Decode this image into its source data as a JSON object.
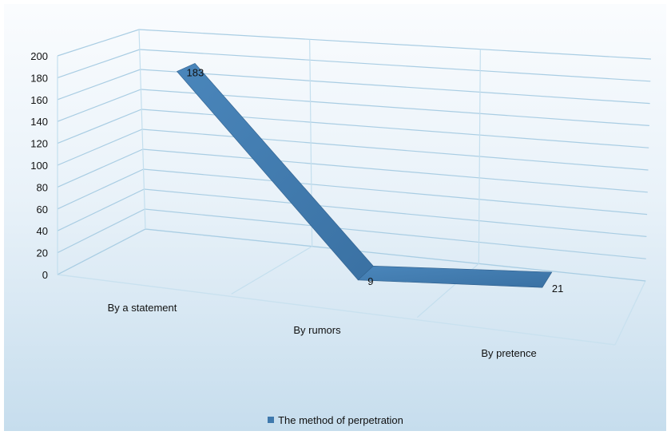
{
  "chart_data": {
    "type": "line",
    "style": "3d",
    "title": "",
    "xlabel": "",
    "ylabel": "",
    "categories": [
      "By a statement",
      "By rumors",
      "By pretence"
    ],
    "series": [
      {
        "name": "The method of perpetration",
        "values": [
          183,
          9,
          21
        ],
        "color": "#3f79ad"
      }
    ],
    "ylim": [
      0,
      200
    ],
    "yticks": [
      0,
      20,
      40,
      60,
      80,
      100,
      120,
      140,
      160,
      180,
      200
    ],
    "grid": true,
    "legend": "bottom",
    "data_labels": true
  }
}
